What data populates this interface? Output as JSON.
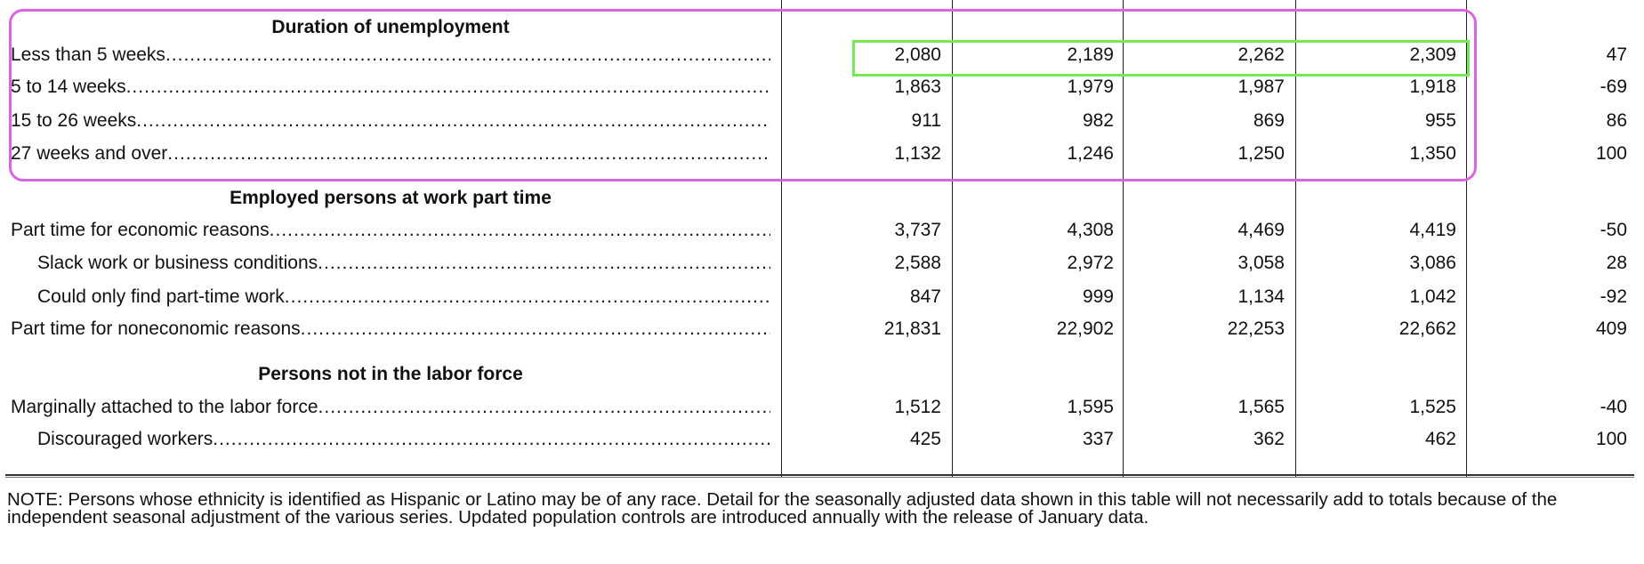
{
  "sections": [
    {
      "title": "Duration of unemployment",
      "rows": [
        {
          "label": "Less than 5 weeks",
          "indent": false,
          "values": [
            "2,080",
            "2,189",
            "2,262",
            "2,309",
            "47"
          ]
        },
        {
          "label": "5 to 14 weeks",
          "indent": false,
          "values": [
            "1,863",
            "1,979",
            "1,987",
            "1,918",
            "-69"
          ]
        },
        {
          "label": "15 to 26 weeks",
          "indent": false,
          "values": [
            "911",
            "982",
            "869",
            "955",
            "86"
          ]
        },
        {
          "label": "27 weeks and over",
          "indent": false,
          "values": [
            "1,132",
            "1,246",
            "1,250",
            "1,350",
            "100"
          ]
        }
      ]
    },
    {
      "title": "Employed persons at work part time",
      "rows": [
        {
          "label": "Part time for economic reasons",
          "indent": false,
          "values": [
            "3,737",
            "4,308",
            "4,469",
            "4,419",
            "-50"
          ]
        },
        {
          "label": "Slack work or business conditions",
          "indent": true,
          "values": [
            "2,588",
            "2,972",
            "3,058",
            "3,086",
            "28"
          ]
        },
        {
          "label": "Could only find part-time work",
          "indent": true,
          "values": [
            "847",
            "999",
            "1,134",
            "1,042",
            "-92"
          ]
        },
        {
          "label": "Part time for noneconomic reasons",
          "indent": false,
          "values": [
            "21,831",
            "22,902",
            "22,253",
            "22,662",
            "409"
          ]
        }
      ]
    },
    {
      "title": "Persons not in the labor force",
      "rows": [
        {
          "label": "Marginally attached to the labor force",
          "indent": false,
          "values": [
            "1,512",
            "1,595",
            "1,565",
            "1,525",
            "-40"
          ]
        },
        {
          "label": "Discouraged workers",
          "indent": true,
          "values": [
            "425",
            "337",
            "362",
            "462",
            "100"
          ]
        }
      ]
    }
  ],
  "note": "NOTE: Persons whose ethnicity is identified as Hispanic or Latino may be of any race. Detail for the seasonally adjusted data shown in this table will not necessarily add to totals because of the independent seasonal adjustment of the various series. Updated population controls are introduced annually with the release of January data.",
  "highlights": {
    "section_box_color": "#d966e0",
    "row_box_color": "#77e85a"
  }
}
